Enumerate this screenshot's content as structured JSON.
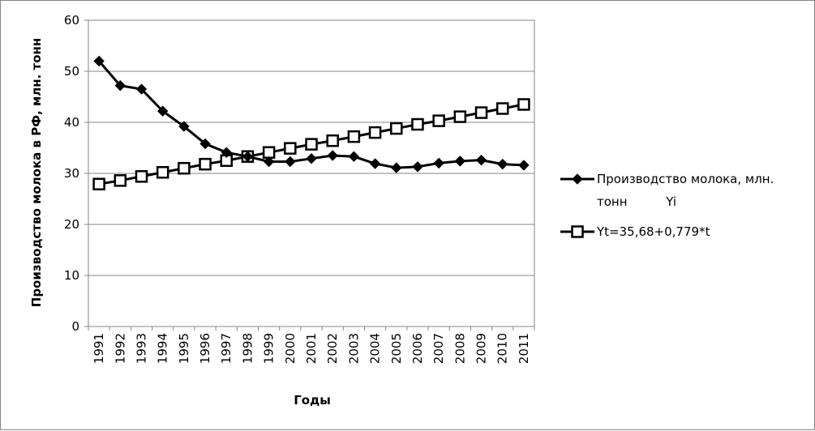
{
  "chart_data": {
    "type": "line",
    "xlabel": "Годы",
    "ylabel": "Производство молока в РФ, млн. тонн",
    "ylim": [
      0,
      60
    ],
    "yticks": [
      "0",
      "10",
      "20",
      "30",
      "40",
      "50",
      "60"
    ],
    "categories": [
      "1991",
      "1992",
      "1993",
      "1994",
      "1995",
      "1996",
      "1997",
      "1998",
      "1999",
      "2000",
      "2001",
      "2002",
      "2003",
      "2004",
      "2005",
      "2006",
      "2007",
      "2008",
      "2009",
      "2010",
      "2011"
    ],
    "grid": "horizontal",
    "legend_position": "right",
    "series": [
      {
        "name": "Производство молока, млн. тонн          Yi",
        "legend_lines": [
          "Производство молока, млн.",
          "тонн          Yi"
        ],
        "marker": "filled-diamond",
        "color": "#000000",
        "values": [
          52.0,
          47.2,
          46.5,
          42.2,
          39.2,
          35.8,
          34.1,
          33.3,
          32.3,
          32.3,
          32.9,
          33.5,
          33.3,
          31.9,
          31.1,
          31.3,
          32.0,
          32.4,
          32.6,
          31.8,
          31.6
        ]
      },
      {
        "name": "Yt=35,68+0,779*t",
        "legend_lines": [
          "Yt=35,68+0,779*t"
        ],
        "marker": "hollow-square",
        "color": "#000000",
        "values": [
          27.9,
          28.6,
          29.4,
          30.2,
          31.0,
          31.8,
          32.5,
          33.3,
          34.1,
          34.9,
          35.7,
          36.4,
          37.2,
          38.0,
          38.8,
          39.6,
          40.3,
          41.1,
          41.9,
          42.7,
          43.5
        ]
      }
    ]
  }
}
